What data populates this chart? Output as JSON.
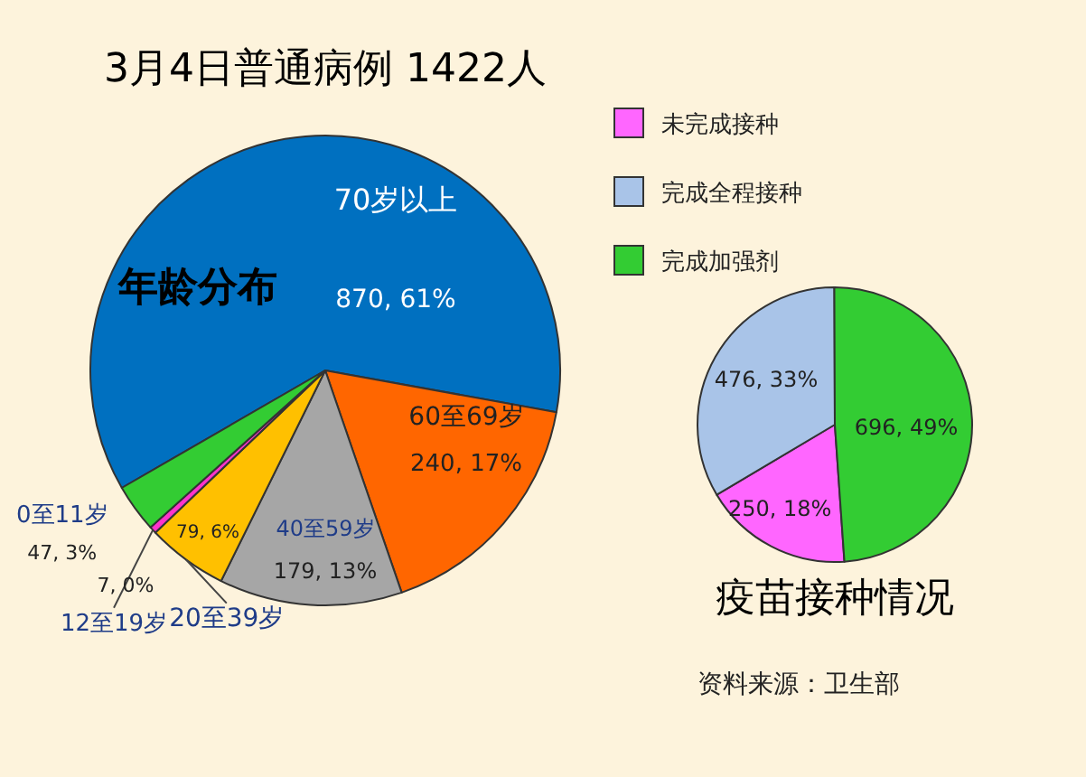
{
  "chart_data": [
    {
      "type": "pie",
      "title": "3月4日普通病例 1422人",
      "categories": [
        "70岁以上",
        "60至69岁",
        "40至59岁",
        "20至39岁",
        "12至19岁",
        "0至11岁"
      ],
      "values": [
        870,
        240,
        179,
        79,
        7,
        47
      ],
      "colors": [
        "#0070c0",
        "#ff6600",
        "#a6a6a6",
        "#ffc000",
        "#ff33cc",
        "#33cc33"
      ],
      "value_labels": [
        "870, 61%",
        "240, 17%",
        "179, 13%",
        "79, 6%",
        "7, 0%",
        "47, 3%"
      ],
      "annotations": [
        "年龄分布"
      ]
    },
    {
      "type": "pie",
      "title": "疫苗接种情况",
      "categories": [
        "未完成接种",
        "完成全程接种",
        "完成加强剂"
      ],
      "values": [
        250,
        476,
        696
      ],
      "colors": [
        "#ff66ff",
        "#a9c4e8",
        "#33cc33"
      ],
      "value_labels": [
        "250, 18%",
        "476, 33%",
        "696, 49%"
      ],
      "legend": "top",
      "annotations": [
        "资料来源：卫生部"
      ]
    }
  ]
}
